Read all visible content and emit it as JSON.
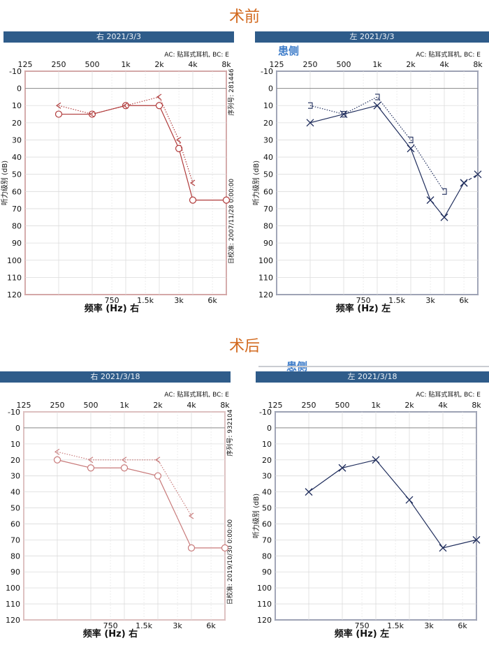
{
  "page": {
    "title_pre": "术前",
    "title_post": "术后",
    "affected_side_label_pre": "患侧",
    "affected_side_label_post": "患侧",
    "colors": {
      "right_ear": "#b03a3a",
      "right_ear_light": "#c87a7a",
      "left_ear": "#1f2d5c",
      "header": "#2f5c8a",
      "title": "#d2691e",
      "side_label": "#3d7cc9"
    }
  },
  "chart_data": [
    {
      "id": "pre-right",
      "type": "line",
      "header": "右 2021/3/3",
      "acbc_note": "AC: 贴耳式耳机, BC: E",
      "serial": "序列号: 281446",
      "calibration": "日校准: 2007/11/28 0:00:00",
      "xlabel": "频率 (Hz) 右",
      "ylabel": "听力级别 (dB)",
      "x_top_ticks": [
        "125",
        "250",
        "500",
        "1k",
        "2k",
        "4k",
        "8k"
      ],
      "x_bottom_ticks": [
        "750",
        "1.5k",
        "3k",
        "6k"
      ],
      "y_ticks": [
        -10,
        0,
        10,
        20,
        30,
        40,
        50,
        60,
        70,
        80,
        90,
        100,
        110,
        120
      ],
      "ylim": [
        -10,
        120
      ],
      "series": [
        {
          "ear": "right",
          "symbol": "circle",
          "style": "solid",
          "x": [
            250,
            500,
            1000,
            2000,
            3000,
            4000,
            8000
          ],
          "y": [
            15,
            15,
            10,
            10,
            35,
            65,
            65
          ]
        },
        {
          "ear": "right",
          "symbol": "bc-right",
          "style": "dotted",
          "x": [
            250,
            500,
            1000,
            2000,
            3000,
            4000
          ],
          "y": [
            10,
            15,
            10,
            5,
            30,
            55
          ]
        }
      ]
    },
    {
      "id": "pre-left",
      "type": "line",
      "header": "左 2021/3/3",
      "acbc_note": "AC: 贴耳式耳机, BC: E",
      "xlabel": "频率 (Hz) 左",
      "ylabel": "听力级别 (dB)",
      "x_top_ticks": [
        "125",
        "250",
        "500",
        "1k",
        "2k",
        "4k",
        "8k"
      ],
      "x_bottom_ticks": [
        "750",
        "1.5k",
        "3k",
        "6k"
      ],
      "y_ticks": [
        -10,
        0,
        10,
        20,
        30,
        40,
        50,
        60,
        70,
        80,
        90,
        100,
        110,
        120
      ],
      "ylim": [
        -10,
        120
      ],
      "series": [
        {
          "ear": "left",
          "symbol": "x",
          "style": "solid",
          "x": [
            250,
            500,
            1000,
            2000,
            3000,
            4000,
            6000
          ],
          "y": [
            20,
            15,
            10,
            35,
            65,
            75,
            55
          ]
        },
        {
          "ear": "left",
          "symbol": "x",
          "style": "dashed",
          "x": [
            6000,
            8000
          ],
          "y": [
            55,
            50
          ]
        },
        {
          "ear": "left",
          "symbol": "bc-left",
          "style": "dotted",
          "x": [
            250,
            500,
            1000,
            2000,
            4000
          ],
          "y": [
            10,
            15,
            5,
            30,
            60
          ]
        }
      ]
    },
    {
      "id": "post-right",
      "type": "line",
      "header": "右 2021/3/18",
      "acbc_note": "AC: 贴耳式耳机, BC: E",
      "serial": "序列号: 932104",
      "calibration": "日校准: 2019/10/30 0:00:00",
      "xlabel": "频率 (Hz) 右",
      "ylabel": "",
      "x_top_ticks": [
        "125",
        "250",
        "500",
        "1k",
        "2k",
        "4k",
        "8k"
      ],
      "x_bottom_ticks": [
        "750",
        "1.5k",
        "3k",
        "6k"
      ],
      "y_ticks": [
        -10,
        0,
        10,
        20,
        30,
        40,
        50,
        60,
        70,
        80,
        90,
        100,
        110,
        120
      ],
      "ylim": [
        -10,
        120
      ],
      "series": [
        {
          "ear": "right",
          "symbol": "circle",
          "style": "solid",
          "x": [
            250,
            500,
            1000,
            2000,
            4000,
            8000
          ],
          "y": [
            20,
            25,
            25,
            30,
            75,
            75
          ]
        },
        {
          "ear": "right",
          "symbol": "bc-right",
          "style": "dotted",
          "x": [
            250,
            500,
            1000,
            2000,
            4000
          ],
          "y": [
            15,
            20,
            20,
            20,
            55
          ]
        }
      ]
    },
    {
      "id": "post-left",
      "type": "line",
      "header": "左 2021/3/18",
      "acbc_note": "AC: 贴耳式耳机, BC: E",
      "xlabel": "频率 (Hz) 左",
      "ylabel": "听力级别 (dB)",
      "x_top_ticks": [
        "125",
        "250",
        "500",
        "1k",
        "2k",
        "4k",
        "8k"
      ],
      "x_bottom_ticks": [
        "750",
        "1.5k",
        "3k",
        "6k"
      ],
      "y_ticks": [
        -10,
        0,
        10,
        20,
        30,
        40,
        50,
        60,
        70,
        80,
        90,
        100,
        110,
        120
      ],
      "ylim": [
        -10,
        120
      ],
      "series": [
        {
          "ear": "left",
          "symbol": "x",
          "style": "solid",
          "x": [
            250,
            500,
            1000,
            2000,
            4000,
            8000
          ],
          "y": [
            40,
            25,
            20,
            45,
            75,
            70
          ]
        }
      ]
    }
  ]
}
